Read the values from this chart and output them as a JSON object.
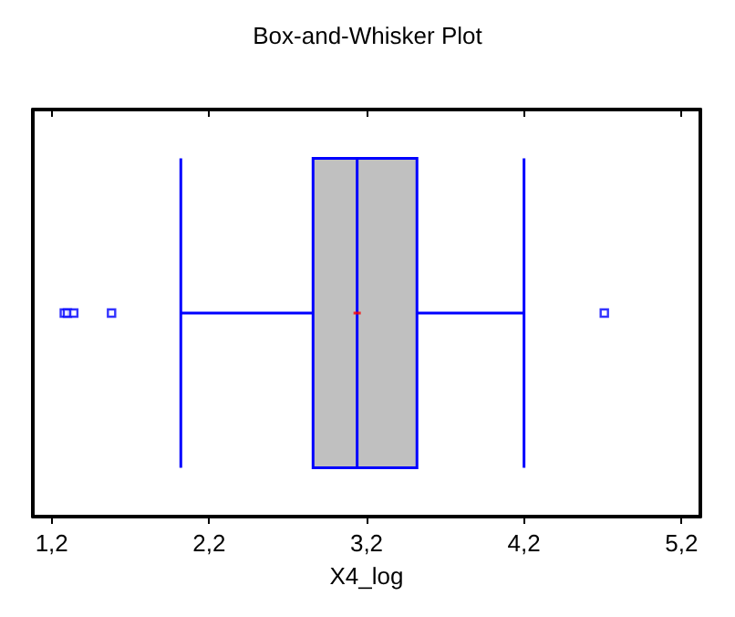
{
  "chart_data": {
    "type": "box",
    "title": "Box-and-Whisker Plot",
    "xlabel": "X4_log",
    "orientation": "horizontal",
    "categories": [
      null
    ],
    "color": "#0000ff",
    "boxes": [
      {
        "low": 2.02,
        "q1": 2.86,
        "median": 3.14,
        "q3": 3.52,
        "high": 4.2,
        "mean": 3.14,
        "outliers": [
          1.28,
          1.3,
          1.34,
          1.58,
          4.71
        ]
      }
    ],
    "xlim": [
      1.08,
      5.32
    ],
    "xticks": [
      {
        "value": 1.2,
        "label": "1,2"
      },
      {
        "value": 2.2,
        "label": "2,2"
      },
      {
        "value": 3.2,
        "label": "3,2"
      },
      {
        "value": 4.2,
        "label": "4,2"
      },
      {
        "value": 5.2,
        "label": "5,2"
      }
    ],
    "grid": false
  }
}
